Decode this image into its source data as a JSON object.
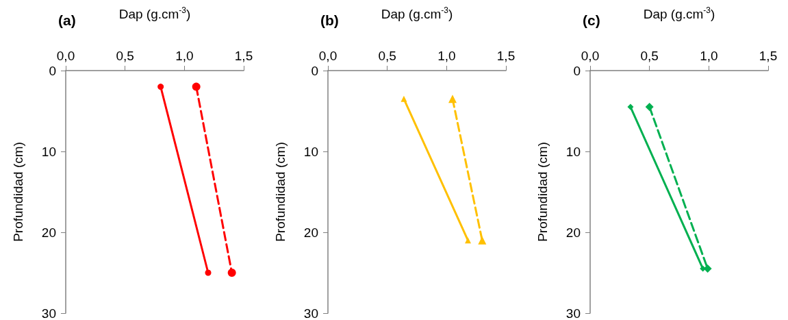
{
  "chart_data": [
    {
      "type": "line",
      "title": "(a)",
      "xlabel": "Dap (g.cm$^{-3}$)",
      "ylabel": "Profundidad (cm)",
      "marker": "circle",
      "grid": false,
      "xlim": [
        0,
        1.5
      ],
      "xticks": [
        {
          "value": 0,
          "label": "0,0"
        },
        {
          "value": 0.5,
          "label": "0,5"
        },
        {
          "value": 1,
          "label": "1,0"
        },
        {
          "value": 1.5,
          "label": "1,5"
        }
      ],
      "ylim": [
        30,
        0
      ],
      "yticks": [
        0,
        10,
        20,
        30
      ],
      "series": [
        {
          "color": "#ff0000",
          "line_style": "solid",
          "x": [
            0.8,
            1.2
          ],
          "values": [
            2,
            25
          ]
        },
        {
          "color": "#ff0000",
          "line_style": "dashed",
          "x": [
            1.1,
            1.4
          ],
          "values": [
            2,
            25
          ]
        }
      ]
    },
    {
      "type": "line",
      "title": "(b)",
      "xlabel": "Dap (g.cm$^{-3}$)",
      "ylabel": "Profundidad (cm)",
      "marker": "triangle",
      "grid": false,
      "xlim": [
        0,
        1.5
      ],
      "xticks": [
        {
          "value": 0,
          "label": "0,0"
        },
        {
          "value": 0.5,
          "label": "0,5"
        },
        {
          "value": 1,
          "label": "1,0"
        },
        {
          "value": 1.5,
          "label": "1,5"
        }
      ],
      "ylim": [
        30,
        0
      ],
      "yticks": [
        0,
        10,
        20,
        30
      ],
      "series": [
        {
          "color": "#ffc000",
          "line_style": "solid",
          "x": [
            0.64,
            1.18
          ],
          "values": [
            3.5,
            21
          ]
        },
        {
          "color": "#ffc000",
          "line_style": "dashed",
          "x": [
            1.05,
            1.3
          ],
          "values": [
            3.5,
            21
          ]
        }
      ]
    },
    {
      "type": "line",
      "title": "(c)",
      "xlabel": "Dap (g.cm$^{-3}$)",
      "ylabel": "Profundidad (cm)",
      "marker": "diamond",
      "grid": false,
      "xlim": [
        0,
        1.5
      ],
      "xticks": [
        {
          "value": 0,
          "label": "0,0"
        },
        {
          "value": 0.5,
          "label": "0,5"
        },
        {
          "value": 1,
          "label": "1,0"
        },
        {
          "value": 1.5,
          "label": "1,5"
        }
      ],
      "ylim": [
        30,
        0
      ],
      "yticks": [
        0,
        10,
        20,
        30
      ],
      "series": [
        {
          "color": "#00b050",
          "line_style": "solid",
          "x": [
            0.34,
            0.95
          ],
          "values": [
            4.5,
            24.5
          ]
        },
        {
          "color": "#00b050",
          "line_style": "dashed",
          "x": [
            0.5,
            0.99
          ],
          "values": [
            4.5,
            24.5
          ]
        }
      ]
    }
  ]
}
